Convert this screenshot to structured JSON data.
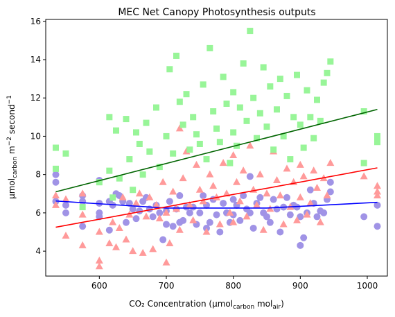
{
  "chart_data": {
    "type": "scatter",
    "title": "MEC Net Canopy Photosynthesis outputs",
    "xlabel": "CO₂ Concentration (µmol",
    "xlabel_sub1": "carbon",
    "xlabel_mid": " mol",
    "xlabel_sub2": "air",
    "xlabel_end": ")",
    "ylabel": "µmol",
    "ylabel_sub": "carbon",
    "ylabel_mid": " m",
    "ylabel_sup1": "−2",
    "ylabel_mid2": " second",
    "ylabel_sup2": "−1",
    "xlim": [
      520,
      1030
    ],
    "ylim": [
      2.7,
      16.1
    ],
    "xticks": [
      600,
      700,
      800,
      900,
      1000
    ],
    "yticks": [
      4,
      6,
      8,
      10,
      12,
      14,
      16
    ],
    "series": [
      {
        "marker": "circle",
        "color": "#a093e6",
        "points": [
          [
            535,
            8.0
          ],
          [
            535,
            7.6
          ],
          [
            535,
            6.6
          ],
          [
            550,
            6.4
          ],
          [
            550,
            6.0
          ],
          [
            575,
            6.6
          ],
          [
            575,
            5.3
          ],
          [
            575,
            6.9
          ],
          [
            600,
            6.5
          ],
          [
            600,
            6.0
          ],
          [
            600,
            5.8
          ],
          [
            600,
            7.7
          ],
          [
            615,
            5.1
          ],
          [
            615,
            6.6
          ],
          [
            620,
            6.4
          ],
          [
            625,
            7.0
          ],
          [
            630,
            6.9
          ],
          [
            635,
            6.6
          ],
          [
            640,
            5.5
          ],
          [
            645,
            6.5
          ],
          [
            650,
            6.2
          ],
          [
            655,
            5.7
          ],
          [
            660,
            6.1
          ],
          [
            665,
            6.6
          ],
          [
            670,
            6.8
          ],
          [
            675,
            6.2
          ],
          [
            680,
            5.8
          ],
          [
            685,
            6.4
          ],
          [
            690,
            6.0
          ],
          [
            695,
            4.6
          ],
          [
            700,
            6.1
          ],
          [
            700,
            5.4
          ],
          [
            705,
            6.6
          ],
          [
            710,
            5.3
          ],
          [
            715,
            6.2
          ],
          [
            720,
            5.5
          ],
          [
            720,
            6.9
          ],
          [
            725,
            5.6
          ],
          [
            730,
            6.3
          ],
          [
            735,
            6.0
          ],
          [
            740,
            6.3
          ],
          [
            745,
            5.4
          ],
          [
            750,
            6.0
          ],
          [
            755,
            6.9
          ],
          [
            760,
            6.4
          ],
          [
            760,
            5.2
          ],
          [
            765,
            5.5
          ],
          [
            770,
            6.7
          ],
          [
            775,
            5.9
          ],
          [
            780,
            5.0
          ],
          [
            785,
            6.5
          ],
          [
            790,
            6.0
          ],
          [
            795,
            5.5
          ],
          [
            800,
            6.7
          ],
          [
            800,
            5.9
          ],
          [
            805,
            6.4
          ],
          [
            810,
            5.6
          ],
          [
            815,
            6.9
          ],
          [
            820,
            6.2
          ],
          [
            825,
            6.0
          ],
          [
            825,
            7.9
          ],
          [
            830,
            5.2
          ],
          [
            835,
            6.5
          ],
          [
            840,
            6.8
          ],
          [
            845,
            6.0
          ],
          [
            850,
            5.8
          ],
          [
            855,
            5.5
          ],
          [
            860,
            6.7
          ],
          [
            865,
            6.2
          ],
          [
            870,
            5.0
          ],
          [
            875,
            6.3
          ],
          [
            880,
            6.8
          ],
          [
            885,
            5.9
          ],
          [
            890,
            6.4
          ],
          [
            895,
            6.3
          ],
          [
            900,
            5.8
          ],
          [
            900,
            4.3
          ],
          [
            905,
            4.7
          ],
          [
            910,
            6.0
          ],
          [
            915,
            7.2
          ],
          [
            920,
            6.5
          ],
          [
            925,
            5.8
          ],
          [
            930,
            6.1
          ],
          [
            935,
            6.0
          ],
          [
            940,
            6.7
          ],
          [
            945,
            7.1
          ],
          [
            945,
            7.6
          ],
          [
            995,
            5.8
          ],
          [
            1015,
            6.4
          ],
          [
            1015,
            5.3
          ]
        ]
      },
      {
        "marker": "triangle",
        "color": "#ff9a9a",
        "points": [
          [
            535,
            6.4
          ],
          [
            535,
            6.9
          ],
          [
            550,
            4.8
          ],
          [
            550,
            6.7
          ],
          [
            575,
            4.3
          ],
          [
            575,
            5.9
          ],
          [
            575,
            7.0
          ],
          [
            600,
            3.5
          ],
          [
            600,
            3.2
          ],
          [
            600,
            5.0
          ],
          [
            615,
            4.4
          ],
          [
            620,
            5.5
          ],
          [
            625,
            4.2
          ],
          [
            630,
            5.2
          ],
          [
            635,
            6.8
          ],
          [
            640,
            4.6
          ],
          [
            645,
            5.9
          ],
          [
            650,
            4.0
          ],
          [
            655,
            6.5
          ],
          [
            660,
            7.0
          ],
          [
            665,
            3.9
          ],
          [
            670,
            5.8
          ],
          [
            675,
            6.8
          ],
          [
            680,
            4.1
          ],
          [
            685,
            6.4
          ],
          [
            690,
            5.7
          ],
          [
            695,
            7.6
          ],
          [
            700,
            3.4
          ],
          [
            700,
            6.0
          ],
          [
            705,
            4.4
          ],
          [
            710,
            7.1
          ],
          [
            715,
            6.2
          ],
          [
            720,
            10.4
          ],
          [
            720,
            5.1
          ],
          [
            725,
            7.8
          ],
          [
            730,
            9.2
          ],
          [
            735,
            6.4
          ],
          [
            740,
            5.6
          ],
          [
            745,
            8.5
          ],
          [
            750,
            7.2
          ],
          [
            755,
            6.6
          ],
          [
            760,
            5.0
          ],
          [
            765,
            8.0
          ],
          [
            770,
            7.4
          ],
          [
            775,
            6.8
          ],
          [
            780,
            5.4
          ],
          [
            785,
            8.6
          ],
          [
            790,
            7.0
          ],
          [
            795,
            6.0
          ],
          [
            800,
            9.0
          ],
          [
            800,
            5.5
          ],
          [
            805,
            7.6
          ],
          [
            810,
            6.6
          ],
          [
            815,
            8.2
          ],
          [
            820,
            5.8
          ],
          [
            825,
            9.5
          ],
          [
            830,
            7.2
          ],
          [
            835,
            6.4
          ],
          [
            840,
            8.0
          ],
          [
            845,
            5.1
          ],
          [
            850,
            7.0
          ],
          [
            855,
            6.2
          ],
          [
            860,
            9.2
          ],
          [
            865,
            7.7
          ],
          [
            870,
            6.9
          ],
          [
            875,
            5.4
          ],
          [
            880,
            8.3
          ],
          [
            885,
            6.3
          ],
          [
            890,
            7.6
          ],
          [
            895,
            5.6
          ],
          [
            900,
            8.5
          ],
          [
            900,
            6.8
          ],
          [
            905,
            7.9
          ],
          [
            910,
            5.9
          ],
          [
            915,
            6.5
          ],
          [
            920,
            8.2
          ],
          [
            925,
            7.3
          ],
          [
            930,
            5.5
          ],
          [
            935,
            7.8
          ],
          [
            940,
            6.9
          ],
          [
            945,
            8.6
          ],
          [
            995,
            7.9
          ],
          [
            1015,
            7.4
          ],
          [
            1015,
            7.1
          ],
          [
            1015,
            6.9
          ]
        ]
      },
      {
        "marker": "square",
        "color": "#98f598",
        "points": [
          [
            535,
            9.4
          ],
          [
            535,
            8.3
          ],
          [
            550,
            9.1
          ],
          [
            575,
            6.3
          ],
          [
            600,
            7.6
          ],
          [
            615,
            8.2
          ],
          [
            615,
            11.0
          ],
          [
            620,
            6.8
          ],
          [
            625,
            10.3
          ],
          [
            630,
            7.8
          ],
          [
            640,
            10.9
          ],
          [
            645,
            8.8
          ],
          [
            650,
            7.2
          ],
          [
            655,
            10.2
          ],
          [
            660,
            9.6
          ],
          [
            665,
            8.0
          ],
          [
            670,
            10.7
          ],
          [
            675,
            9.2
          ],
          [
            685,
            11.5
          ],
          [
            690,
            8.4
          ],
          [
            700,
            10.0
          ],
          [
            705,
            13.5
          ],
          [
            710,
            9.1
          ],
          [
            715,
            14.2
          ],
          [
            720,
            11.8
          ],
          [
            725,
            10.6
          ],
          [
            730,
            12.2
          ],
          [
            735,
            9.3
          ],
          [
            740,
            11.0
          ],
          [
            745,
            10.1
          ],
          [
            750,
            9.6
          ],
          [
            755,
            12.7
          ],
          [
            760,
            8.8
          ],
          [
            765,
            14.6
          ],
          [
            770,
            11.3
          ],
          [
            775,
            10.4
          ],
          [
            780,
            9.7
          ],
          [
            785,
            13.1
          ],
          [
            790,
            11.7
          ],
          [
            795,
            8.6
          ],
          [
            800,
            12.3
          ],
          [
            800,
            10.2
          ],
          [
            805,
            9.5
          ],
          [
            810,
            11.5
          ],
          [
            815,
            13.8
          ],
          [
            820,
            10.8
          ],
          [
            825,
            15.5
          ],
          [
            830,
            12.0
          ],
          [
            835,
            9.9
          ],
          [
            840,
            11.2
          ],
          [
            845,
            13.6
          ],
          [
            850,
            10.5
          ],
          [
            855,
            12.6
          ],
          [
            860,
            9.3
          ],
          [
            865,
            11.4
          ],
          [
            870,
            13.0
          ],
          [
            875,
            10.0
          ],
          [
            880,
            12.1
          ],
          [
            885,
            8.8
          ],
          [
            890,
            11.0
          ],
          [
            895,
            13.2
          ],
          [
            900,
            10.6
          ],
          [
            905,
            9.4
          ],
          [
            910,
            12.4
          ],
          [
            915,
            11.0
          ],
          [
            920,
            9.9
          ],
          [
            925,
            11.9
          ],
          [
            930,
            10.8
          ],
          [
            935,
            12.8
          ],
          [
            940,
            13.3
          ],
          [
            945,
            13.9
          ],
          [
            995,
            8.6
          ],
          [
            995,
            11.3
          ],
          [
            1015,
            10.0
          ],
          [
            1015,
            9.7
          ]
        ]
      }
    ],
    "trend_lines": [
      {
        "color": "#0000ff",
        "x": [
          535,
          700,
          850,
          1015
        ],
        "y": [
          6.62,
          6.25,
          6.25,
          6.55
        ]
      },
      {
        "color": "#ff0000",
        "x": [
          535,
          1015
        ],
        "y": [
          5.25,
          8.35
        ]
      },
      {
        "color": "#006400",
        "x": [
          535,
          1015
        ],
        "y": [
          7.1,
          11.4
        ]
      }
    ]
  }
}
